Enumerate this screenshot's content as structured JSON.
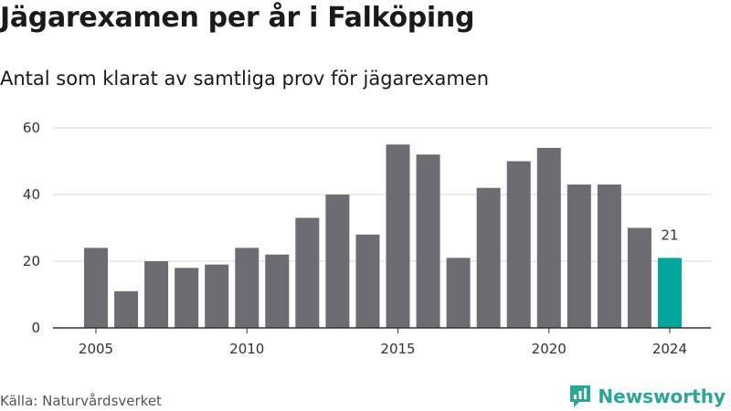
{
  "header": {
    "title": "Jägarexamen per år i Falköping",
    "subtitle": "Antal som klarat av samtliga prov för jägarexamen"
  },
  "footer": {
    "source": "Källa: Naturvårdsverket",
    "brand": "Newsworthy"
  },
  "colors": {
    "bar": "#6d6c72",
    "highlight": "#00a69c",
    "grid": "#d9d9d9",
    "axis": "#333333",
    "brand": "#2ba596"
  },
  "icons": {
    "brand_logo": "newsworthy-chart-logo-icon"
  },
  "chart_data": {
    "type": "bar",
    "title": "Jägarexamen per år i Falköping",
    "subtitle": "Antal som klarat av samtliga prov för jägarexamen",
    "xlabel": "",
    "ylabel": "",
    "categories": [
      2005,
      2006,
      2007,
      2008,
      2009,
      2010,
      2011,
      2012,
      2013,
      2014,
      2015,
      2016,
      2017,
      2018,
      2019,
      2020,
      2021,
      2022,
      2023,
      2024
    ],
    "values": [
      24,
      11,
      20,
      18,
      19,
      24,
      22,
      33,
      40,
      28,
      55,
      52,
      21,
      42,
      50,
      54,
      43,
      43,
      30,
      21
    ],
    "ylim": [
      0,
      60
    ],
    "yticks": [
      0,
      20,
      40,
      60
    ],
    "xticks": [
      2005,
      2010,
      2015,
      2020,
      2024
    ],
    "grid": true,
    "highlight_category": 2024,
    "data_labels": [
      {
        "category": 2024,
        "text": "21"
      }
    ]
  }
}
